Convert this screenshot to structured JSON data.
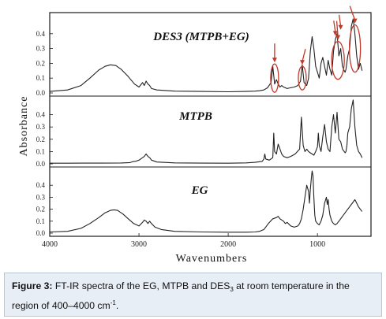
{
  "chart_data": {
    "type": "line",
    "xlabel": "Wavenumbers",
    "ylabel": "Absorbance",
    "xlim": [
      4000,
      400
    ],
    "x_ticks": [
      4000,
      3000,
      2000,
      1000
    ],
    "panels": [
      {
        "title": "DES3 (MTPB+EG)",
        "y_ticks": [
          "0.0",
          "0.1",
          "0.2",
          "0.3",
          "0.4"
        ],
        "ylim": [
          0,
          0.5
        ],
        "series": [
          {
            "x": [
              4000,
              3800,
              3650,
              3550,
              3450,
              3380,
              3320,
              3260,
              3200,
              3120,
              3050,
              3000,
              2960,
              2940,
              2920,
              2900,
              2880,
              2860,
              2800,
              2600,
              2300,
              2000,
              1800,
              1700,
              1650,
              1600,
              1560,
              1520,
              1500,
              1480,
              1460,
              1440,
              1420,
              1400,
              1380,
              1340,
              1300,
              1260,
              1220,
              1190,
              1170,
              1150,
              1120,
              1100,
              1080,
              1060,
              1040,
              1020,
              1000,
              980,
              960,
              940,
              920,
              900,
              880,
              860,
              840,
              820,
              800,
              780,
              760,
              740,
              720,
              700,
              690,
              680,
              660,
              640,
              620,
              600,
              580,
              560,
              540,
              520,
              500
            ],
            "y": [
              0.01,
              0.02,
              0.05,
              0.1,
              0.155,
              0.18,
              0.19,
              0.185,
              0.16,
              0.11,
              0.06,
              0.04,
              0.07,
              0.05,
              0.08,
              0.06,
              0.05,
              0.03,
              0.02,
              0.012,
              0.01,
              0.008,
              0.01,
              0.012,
              0.015,
              0.02,
              0.035,
              0.07,
              0.18,
              0.06,
              0.09,
              0.06,
              0.04,
              0.05,
              0.04,
              0.03,
              0.035,
              0.04,
              0.05,
              0.08,
              0.19,
              0.07,
              0.05,
              0.1,
              0.28,
              0.38,
              0.3,
              0.18,
              0.14,
              0.1,
              0.2,
              0.24,
              0.18,
              0.12,
              0.22,
              0.16,
              0.12,
              0.28,
              0.36,
              0.4,
              0.25,
              0.3,
              0.18,
              0.15,
              0.14,
              0.16,
              0.25,
              0.3,
              0.45,
              0.5,
              0.4,
              0.25,
              0.16,
              0.2,
              0.15
            ]
          }
        ]
      },
      {
        "title": "MTPB",
        "y_ticks": [
          "0.0",
          "0.1",
          "0.2",
          "0.3",
          "0.4"
        ],
        "ylim": [
          0,
          0.5
        ],
        "series": [
          {
            "x": [
              4000,
              3800,
              3600,
              3400,
              3200,
              3100,
              3060,
              3040,
              3000,
              2960,
              2940,
              2920,
              2900,
              2880,
              2860,
              2800,
              2600,
              2300,
              2000,
              1800,
              1700,
              1620,
              1600,
              1590,
              1580,
              1540,
              1500,
              1490,
              1480,
              1460,
              1440,
              1420,
              1400,
              1380,
              1340,
              1300,
              1250,
              1200,
              1180,
              1160,
              1140,
              1120,
              1100,
              1080,
              1060,
              1040,
              1020,
              1000,
              990,
              980,
              960,
              940,
              920,
              900,
              880,
              860,
              840,
              820,
              800,
              780,
              760,
              740,
              720,
              700,
              690,
              680,
              670,
              660,
              640,
              620,
              600,
              580,
              560,
              540,
              520,
              500
            ],
            "y": [
              0.005,
              0.005,
              0.006,
              0.006,
              0.007,
              0.01,
              0.02,
              0.02,
              0.03,
              0.05,
              0.06,
              0.08,
              0.06,
              0.05,
              0.03,
              0.015,
              0.008,
              0.006,
              0.005,
              0.008,
              0.012,
              0.02,
              0.04,
              0.08,
              0.04,
              0.03,
              0.05,
              0.25,
              0.1,
              0.08,
              0.16,
              0.12,
              0.08,
              0.06,
              0.05,
              0.06,
              0.08,
              0.12,
              0.38,
              0.15,
              0.1,
              0.12,
              0.1,
              0.09,
              0.08,
              0.07,
              0.1,
              0.14,
              0.25,
              0.15,
              0.1,
              0.22,
              0.32,
              0.18,
              0.12,
              0.1,
              0.3,
              0.4,
              0.25,
              0.42,
              0.2,
              0.18,
              0.12,
              0.1,
              0.09,
              0.1,
              0.15,
              0.25,
              0.3,
              0.45,
              0.52,
              0.3,
              0.15,
              0.1,
              0.08,
              0.05
            ]
          }
        ]
      },
      {
        "title": "EG",
        "y_ticks": [
          "0.0",
          "0.1",
          "0.2",
          "0.3",
          "0.4"
        ],
        "ylim": [
          0,
          0.5
        ],
        "series": [
          {
            "x": [
              4000,
              3800,
              3650,
              3550,
              3450,
              3380,
              3320,
              3280,
              3240,
              3180,
              3120,
              3060,
              3000,
              2960,
              2940,
              2920,
              2900,
              2880,
              2860,
              2820,
              2750,
              2600,
              2300,
              2000,
              1800,
              1700,
              1650,
              1600,
              1550,
              1500,
              1460,
              1440,
              1420,
              1400,
              1380,
              1360,
              1340,
              1300,
              1260,
              1220,
              1200,
              1180,
              1160,
              1140,
              1120,
              1100,
              1090,
              1080,
              1070,
              1060,
              1050,
              1040,
              1030,
              1020,
              1000,
              980,
              960,
              940,
              920,
              900,
              890,
              880,
              870,
              860,
              840,
              820,
              800,
              780,
              760,
              740,
              720,
              700,
              680,
              660,
              640,
              620,
              600,
              580,
              560,
              540,
              520,
              500
            ],
            "y": [
              0.01,
              0.015,
              0.04,
              0.08,
              0.13,
              0.17,
              0.19,
              0.195,
              0.19,
              0.16,
              0.12,
              0.08,
              0.06,
              0.09,
              0.11,
              0.1,
              0.08,
              0.1,
              0.08,
              0.05,
              0.03,
              0.015,
              0.01,
              0.008,
              0.008,
              0.01,
              0.015,
              0.03,
              0.08,
              0.12,
              0.13,
              0.14,
              0.12,
              0.11,
              0.1,
              0.08,
              0.09,
              0.06,
              0.05,
              0.06,
              0.08,
              0.12,
              0.2,
              0.3,
              0.4,
              0.35,
              0.25,
              0.36,
              0.45,
              0.52,
              0.48,
              0.3,
              0.15,
              0.1,
              0.08,
              0.07,
              0.1,
              0.15,
              0.25,
              0.3,
              0.24,
              0.28,
              0.2,
              0.15,
              0.1,
              0.08,
              0.07,
              0.08,
              0.1,
              0.12,
              0.14,
              0.16,
              0.18,
              0.2,
              0.22,
              0.24,
              0.26,
              0.28,
              0.25,
              0.22,
              0.2,
              0.18
            ]
          }
        ]
      }
    ],
    "annotations": "red ellipses and arrows on DES3 spectrum near ~1480, ~1170, ~760 and ~560 cm-1"
  },
  "caption": {
    "label": "Figure 3:",
    "text_before": " FT-IR spectra of the EG, MTPB and DES",
    "sub": "3",
    "text_middle": " at room temperature in the region of 400–4000 cm",
    "sup": "-1",
    "text_end": "."
  },
  "colors": {
    "line": "#222222",
    "annotation": "#c0392b",
    "caption_bg": "#e8eef5"
  }
}
